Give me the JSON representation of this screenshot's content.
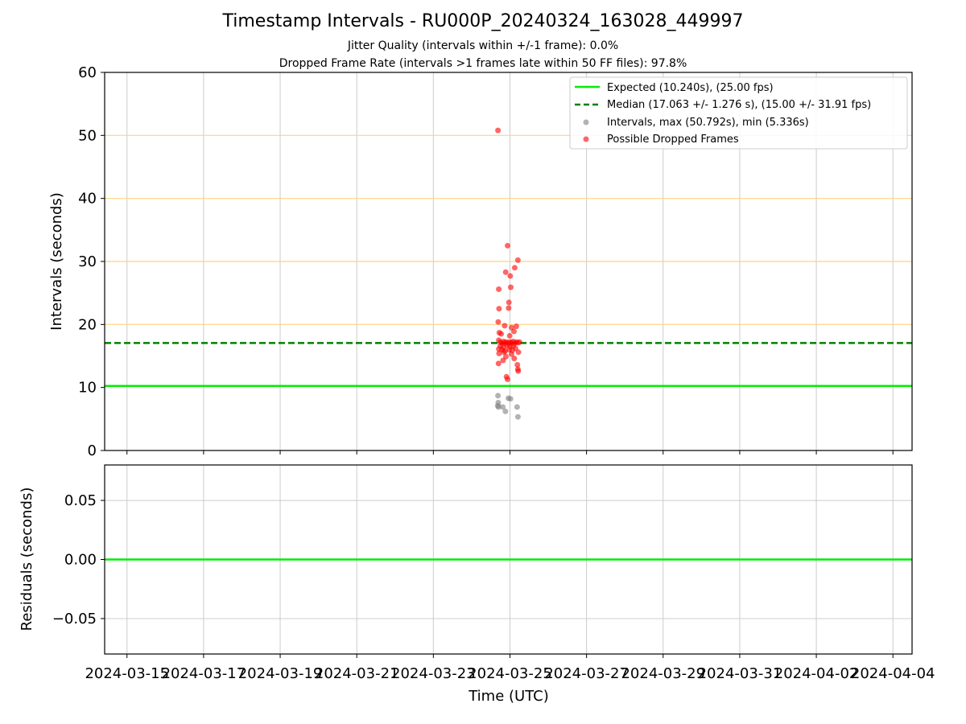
{
  "figure": {
    "title": "Timestamp Intervals - RU000P_20240324_163028_449997",
    "subtitle_jitter": "Jitter Quality (intervals within +/-1 frame): 0.0%",
    "subtitle_dropped": "Dropped Frame Rate (intervals >1 frames late within 50 FF files): 97.8%"
  },
  "colors": {
    "expected": "#00ee00",
    "median": "#008000",
    "intervals": "#808080",
    "dropped": "#ff0000",
    "frame_lines": "#ffd27f",
    "grid": "#cccccc"
  },
  "chart_data": [
    {
      "type": "scatter",
      "panel": "top",
      "ylabel": "Intervals (seconds)",
      "xlim": [
        "2024-03-14T10:00",
        "2024-04-04T12:00"
      ],
      "ylim": [
        0,
        60
      ],
      "yticks": [
        0,
        10,
        20,
        30,
        40,
        50,
        60
      ],
      "xticks": [
        "2024-03-15",
        "2024-03-17",
        "2024-03-19",
        "2024-03-21",
        "2024-03-23",
        "2024-03-25",
        "2024-03-27",
        "2024-03-29",
        "2024-03-31",
        "2024-04-02",
        "2024-04-04"
      ],
      "grid": true,
      "legend_position": "top-right",
      "horizontal_guides": [
        20,
        30,
        40,
        50
      ],
      "lines": [
        {
          "name": "Expected (10.240s), (25.00 fps)",
          "y": 10.24,
          "style": "solid"
        },
        {
          "name": "Median (17.063 +/- 1.276 s), (15.00 +/- 31.91 fps)",
          "y": 17.063,
          "style": "dashed"
        }
      ],
      "series": [
        {
          "name": "Intervals, max (50.792s), min (5.336s)",
          "points": [
            {
              "x": "2024-03-24T16:30",
              "y": 8.7
            },
            {
              "x": "2024-03-24T16:40",
              "y": 7.6
            },
            {
              "x": "2024-03-24T16:20",
              "y": 7.1
            },
            {
              "x": "2024-03-24T16:50",
              "y": 6.9
            },
            {
              "x": "2024-03-24T19:30",
              "y": 6.9
            },
            {
              "x": "2024-03-24T21:10",
              "y": 6.2
            },
            {
              "x": "2024-03-24T23:00",
              "y": 8.3
            },
            {
              "x": "2024-03-25T00:20",
              "y": 8.2
            },
            {
              "x": "2024-03-25T04:30",
              "y": 6.9
            },
            {
              "x": "2024-03-25T05:00",
              "y": 5.336
            }
          ]
        },
        {
          "name": "Possible Dropped Frames",
          "points": [
            {
              "x": "2024-03-24T16:30",
              "y": 50.792
            },
            {
              "x": "2024-03-24T22:30",
              "y": 32.5
            },
            {
              "x": "2024-03-25T05:00",
              "y": 30.2
            },
            {
              "x": "2024-03-25T03:00",
              "y": 29.0
            },
            {
              "x": "2024-03-24T21:20",
              "y": 28.3
            },
            {
              "x": "2024-03-25T00:10",
              "y": 27.7
            },
            {
              "x": "2024-03-25T00:30",
              "y": 25.9
            },
            {
              "x": "2024-03-24T17:00",
              "y": 25.6
            },
            {
              "x": "2024-03-24T23:20",
              "y": 23.5
            },
            {
              "x": "2024-03-24T23:10",
              "y": 22.6
            },
            {
              "x": "2024-03-24T17:10",
              "y": 22.5
            },
            {
              "x": "2024-03-24T16:40",
              "y": 20.4
            },
            {
              "x": "2024-03-24T20:40",
              "y": 19.8
            },
            {
              "x": "2024-03-25T04:00",
              "y": 19.7
            },
            {
              "x": "2024-03-25T01:00",
              "y": 19.5
            },
            {
              "x": "2024-03-25T02:30",
              "y": 18.9
            },
            {
              "x": "2024-03-24T17:20",
              "y": 18.7
            },
            {
              "x": "2024-03-24T18:30",
              "y": 18.5
            },
            {
              "x": "2024-03-24T23:50",
              "y": 18.2
            },
            {
              "x": "2024-03-24T17:00",
              "y": 17.5
            },
            {
              "x": "2024-03-24T18:00",
              "y": 17.2
            },
            {
              "x": "2024-03-24T19:00",
              "y": 17.0
            },
            {
              "x": "2024-03-24T20:00",
              "y": 17.3
            },
            {
              "x": "2024-03-24T21:00",
              "y": 17.1
            },
            {
              "x": "2024-03-24T22:00",
              "y": 17.2
            },
            {
              "x": "2024-03-24T23:00",
              "y": 17.0
            },
            {
              "x": "2024-03-25T00:00",
              "y": 17.2
            },
            {
              "x": "2024-03-25T01:00",
              "y": 17.1
            },
            {
              "x": "2024-03-25T02:00",
              "y": 17.3
            },
            {
              "x": "2024-03-25T03:00",
              "y": 17.0
            },
            {
              "x": "2024-03-25T04:00",
              "y": 17.2
            },
            {
              "x": "2024-03-25T05:00",
              "y": 17.1
            },
            {
              "x": "2024-03-25T06:00",
              "y": 17.2
            },
            {
              "x": "2024-03-24T18:00",
              "y": 16.6
            },
            {
              "x": "2024-03-24T20:00",
              "y": 16.4
            },
            {
              "x": "2024-03-24T22:00",
              "y": 16.7
            },
            {
              "x": "2024-03-25T00:00",
              "y": 16.5
            },
            {
              "x": "2024-03-25T02:00",
              "y": 16.6
            },
            {
              "x": "2024-03-24T17:00",
              "y": 16.1
            },
            {
              "x": "2024-03-24T19:00",
              "y": 16.0
            },
            {
              "x": "2024-03-24T21:00",
              "y": 15.8
            },
            {
              "x": "2024-03-24T23:30",
              "y": 16.0
            },
            {
              "x": "2024-03-25T01:30",
              "y": 15.9
            },
            {
              "x": "2024-03-25T03:30",
              "y": 16.2
            },
            {
              "x": "2024-03-24T17:10",
              "y": 15.4
            },
            {
              "x": "2024-03-24T20:10",
              "y": 15.6
            },
            {
              "x": "2024-03-25T01:00",
              "y": 15.3
            },
            {
              "x": "2024-03-25T05:20",
              "y": 15.6
            },
            {
              "x": "2024-03-24T21:30",
              "y": 14.9
            },
            {
              "x": "2024-03-25T02:40",
              "y": 14.6
            },
            {
              "x": "2024-03-24T19:40",
              "y": 14.3
            },
            {
              "x": "2024-03-24T16:50",
              "y": 13.8
            },
            {
              "x": "2024-03-25T04:40",
              "y": 13.6
            },
            {
              "x": "2024-03-25T05:00",
              "y": 12.9
            },
            {
              "x": "2024-03-25T05:10",
              "y": 12.6
            },
            {
              "x": "2024-03-24T21:50",
              "y": 11.7
            },
            {
              "x": "2024-03-24T22:30",
              "y": 11.3
            }
          ]
        }
      ]
    },
    {
      "type": "line",
      "panel": "bottom",
      "ylabel": "Residuals (seconds)",
      "xlabel": "Time (UTC)",
      "ylim": [
        -0.08,
        0.08
      ],
      "yticks": [
        0.05,
        0.0,
        -0.05
      ],
      "ytick_labels": [
        "0.05",
        "0.00",
        "−0.05"
      ],
      "grid": true,
      "series": [
        {
          "values": [
            {
              "x": "2024-03-14T10:00",
              "y": 0.0
            },
            {
              "x": "2024-04-04T12:00",
              "y": 0.0
            }
          ]
        }
      ]
    }
  ]
}
